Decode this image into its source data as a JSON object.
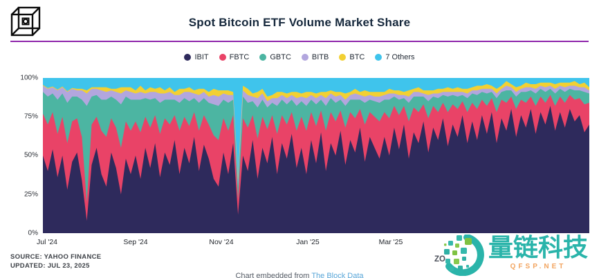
{
  "header": {
    "title": "Spot Bitcoin ETF Volume Market Share",
    "logo_name": "the-block-cube-logo",
    "divider_color": "#8e24aa"
  },
  "chart_data": {
    "type": "area",
    "stacked_percent": true,
    "title": "Spot Bitcoin ETF Volume Market Share",
    "legend_position": "top-center",
    "grid": false,
    "x_axis": {
      "tick_labels": [
        "Jul '24",
        "Sep '24",
        "Nov '24",
        "Jan '25",
        "Mar '25"
      ],
      "range": [
        "Jul 2024",
        "Jul 23, 2025"
      ]
    },
    "y_axis": {
      "tick_labels": [
        "100%",
        "75%",
        "50%",
        "25%",
        "0%"
      ],
      "range": [
        0,
        100
      ]
    },
    "series": [
      {
        "name": "IBIT",
        "color": "#2e2a5c",
        "values": [
          50,
          40,
          54,
          36,
          50,
          28,
          46,
          52,
          34,
          8,
          44,
          55,
          38,
          30,
          52,
          42,
          25,
          48,
          38,
          50,
          35,
          55,
          42,
          58,
          36,
          52,
          44,
          60,
          38,
          55,
          45,
          62,
          40,
          57,
          48,
          35,
          30,
          52,
          38,
          58,
          12,
          50,
          40,
          60,
          35,
          55,
          45,
          62,
          38,
          58,
          48,
          64,
          42,
          55,
          38,
          60,
          45,
          65,
          40,
          58,
          50,
          66,
          44,
          60,
          52,
          68,
          46,
          62,
          55,
          48,
          62,
          50,
          68,
          54,
          70,
          48,
          65,
          58,
          72,
          52,
          68,
          60,
          74,
          56,
          70,
          62,
          76,
          58,
          72,
          60,
          76,
          64,
          78,
          58,
          74,
          66,
          80,
          62,
          76,
          68,
          80,
          64,
          78,
          70,
          82,
          66,
          78,
          68,
          80,
          72,
          76,
          65,
          70
        ]
      },
      {
        "name": "FBTC",
        "color": "#e94367",
        "values": [
          27,
          30,
          24,
          28,
          25,
          30,
          26,
          22,
          28,
          12,
          26,
          20,
          28,
          32,
          22,
          26,
          30,
          24,
          28,
          22,
          30,
          20,
          26,
          18,
          28,
          22,
          26,
          16,
          28,
          20,
          24,
          16,
          26,
          19,
          22,
          28,
          30,
          22,
          28,
          18,
          10,
          24,
          28,
          16,
          26,
          20,
          22,
          14,
          26,
          18,
          22,
          14,
          24,
          20,
          28,
          18,
          24,
          14,
          26,
          20,
          22,
          13,
          24,
          18,
          22,
          12,
          24,
          16,
          20,
          24,
          16,
          24,
          14,
          22,
          12,
          24,
          16,
          20,
          11,
          22,
          14,
          18,
          10,
          22,
          13,
          18,
          9,
          20,
          12,
          20,
          10,
          18,
          9,
          20,
          12,
          18,
          8,
          18,
          10,
          16,
          8,
          18,
          10,
          14,
          7,
          16,
          10,
          16,
          9,
          14,
          11,
          18,
          14
        ]
      },
      {
        "name": "GBTC",
        "color": "#4cb5a2",
        "values": [
          14,
          18,
          12,
          22,
          15,
          26,
          16,
          14,
          24,
          62,
          18,
          14,
          20,
          24,
          14,
          18,
          28,
          16,
          20,
          14,
          21,
          12,
          18,
          11,
          20,
          12,
          16,
          10,
          18,
          12,
          16,
          9,
          18,
          11,
          14,
          20,
          22,
          12,
          18,
          10,
          8,
          14,
          16,
          9,
          20,
          11,
          14,
          8,
          18,
          10,
          13,
          8,
          16,
          10,
          16,
          8,
          14,
          7,
          16,
          9,
          12,
          7,
          14,
          8,
          12,
          6,
          14,
          8,
          10,
          12,
          8,
          12,
          6,
          10,
          5,
          12,
          7,
          10,
          5,
          11,
          6,
          9,
          5,
          10,
          6,
          8,
          4,
          9,
          6,
          9,
          5,
          8,
          4,
          9,
          5,
          8,
          4,
          8,
          5,
          7,
          4,
          8,
          5,
          7,
          4,
          8,
          5,
          7,
          4,
          6,
          5,
          8,
          6
        ]
      },
      {
        "name": "BITB",
        "color": "#b2a6de",
        "values": [
          4,
          5,
          4,
          6,
          4,
          7,
          5,
          4,
          6,
          8,
          5,
          4,
          6,
          5,
          4,
          5,
          7,
          4,
          5,
          4,
          5,
          3,
          5,
          4,
          6,
          4,
          5,
          3,
          5,
          4,
          6,
          3,
          5,
          4,
          4,
          6,
          6,
          4,
          5,
          3,
          4,
          4,
          5,
          3,
          6,
          4,
          4,
          3,
          5,
          3,
          4,
          3,
          5,
          3,
          5,
          3,
          4,
          3,
          5,
          3,
          4,
          3,
          4,
          3,
          4,
          3,
          4,
          3,
          3,
          4,
          3,
          4,
          2,
          3,
          2,
          4,
          3,
          3,
          2,
          4,
          2,
          3,
          2,
          3,
          2,
          3,
          2,
          3,
          2,
          3,
          2,
          3,
          2,
          3,
          2,
          3,
          2,
          3,
          2,
          3,
          2,
          3,
          2,
          3,
          2,
          3,
          2,
          3,
          2,
          3,
          2,
          3,
          2
        ]
      },
      {
        "name": "BTC",
        "color": "#f2d033",
        "values": [
          0.5,
          0.5,
          0.5,
          0.5,
          0.5,
          0.5,
          0.5,
          1,
          1,
          2,
          1,
          1,
          2,
          3,
          1,
          2,
          4,
          2,
          3,
          2,
          4,
          2,
          3,
          2,
          4,
          2,
          3,
          2,
          4,
          2,
          3,
          2,
          4,
          2,
          3,
          4,
          4,
          2,
          3,
          2,
          2,
          3,
          4,
          2,
          4,
          3,
          3,
          2,
          4,
          2,
          3,
          2,
          4,
          2,
          4,
          2,
          3,
          2,
          4,
          2,
          3,
          2,
          4,
          2,
          3,
          2,
          4,
          2,
          3,
          3,
          2,
          3,
          2,
          3,
          2,
          4,
          2,
          3,
          2,
          3,
          2,
          3,
          2,
          3,
          2,
          3,
          2,
          3,
          2,
          3,
          2,
          3,
          2,
          3,
          2,
          3,
          2,
          3,
          2,
          3,
          2,
          3,
          2,
          3,
          2,
          3,
          2,
          3,
          2,
          3,
          2,
          3,
          2
        ]
      }
    ],
    "others": {
      "name": "7 Others",
      "color": "#3fc4ec",
      "definition": "remainder to 100%"
    }
  },
  "footer": {
    "source_line1": "SOURCE: YAHOO FINANCE",
    "source_line2": "UPDATED: JUL 23, 2025",
    "zoom_label": "ZO",
    "embed_caption_prefix": "Chart embedded from ",
    "embed_caption_link": "The Block Data"
  },
  "watermark": {
    "text": "量链科技",
    "subtext": "QFSP.NET",
    "teal": "#2ab4aa",
    "green": "#7fc242",
    "orange": "#f2a45f"
  }
}
